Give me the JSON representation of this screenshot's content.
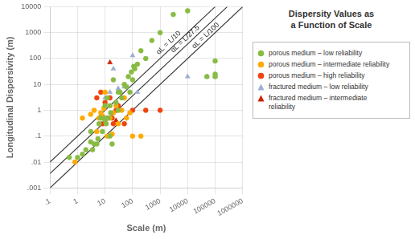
{
  "chart_data": {
    "type": "scatter",
    "title": "Dispersity Values as\na Function of Scale",
    "xlabel": "Scale (m)",
    "ylabel": "Longitudinal Dispersivity (m)",
    "log": true,
    "grid": true,
    "legend": "right",
    "xlim": [
      0.1,
      1000000
    ],
    "ylim": [
      0.001,
      10000
    ],
    "xticks": [
      {
        "value": 0.1,
        "label": ".1"
      },
      1,
      10,
      100,
      1000,
      10000,
      100000,
      1000000
    ],
    "yticks": [
      {
        "value": 0.001,
        "label": ".001"
      },
      {
        "value": 0.01,
        "label": ".01"
      },
      {
        "value": 0.1,
        "label": ".1"
      },
      1,
      10,
      100,
      1000,
      10000
    ],
    "series": [
      {
        "type": "line",
        "color": "#333333",
        "x": [
          0.1,
          100000
        ],
        "values": [
          0.01,
          10000
        ]
      },
      {
        "type": "line",
        "color": "#333333",
        "x": [
          0.1,
          275000
        ],
        "values": [
          0.0036363636363636364,
          10000
        ]
      },
      {
        "type": "line",
        "color": "#333333",
        "x": [
          0.1,
          1000000
        ],
        "values": [
          0.001,
          10000
        ]
      },
      {
        "name": "porous medium – low reliability",
        "type": "scatter",
        "marker": "circle",
        "color": "#88bb44",
        "x": [
          0.5,
          1.0,
          1.5,
          2.0,
          3.0,
          3.0,
          3.5,
          4.0,
          5.0,
          5.5,
          6.0,
          7.0,
          8.0,
          9.0,
          10.0,
          10.0,
          11.0,
          12.0,
          13.0,
          15.0,
          15.0,
          16.0,
          18.0,
          20.0,
          25.0,
          30.0,
          30.0,
          35.0,
          40.0,
          50.0,
          60.0,
          70.0,
          80.0,
          90.0,
          100.0,
          110.0,
          120.0,
          150.0,
          200.0,
          300.0,
          500.0,
          1000.0,
          3000.0,
          10000.0,
          50000.0,
          100000.0,
          100000.0,
          100000.0
        ],
        "values": [
          0.015,
          0.015,
          0.02,
          0.03,
          0.06,
          0.15,
          0.03,
          0.05,
          0.05,
          0.08,
          0.3,
          0.5,
          0.15,
          0.5,
          0.4,
          1.5,
          0.3,
          3.0,
          0.5,
          1.5,
          0.1,
          0.8,
          0.05,
          15.0,
          2.0,
          1.0,
          5.0,
          5.0,
          3.0,
          10.0,
          8.0,
          20.0,
          5.0,
          30.0,
          15.0,
          50.0,
          40.0,
          60.0,
          200.0,
          100.0,
          500.0,
          1000.0,
          5000.0,
          7000.0,
          20.0,
          80.0,
          20.0,
          25.0
        ]
      },
      {
        "name": "porous medium – intermediate reliability",
        "type": "scatter",
        "marker": "circle",
        "color": "#ffaa00",
        "x": [
          0.8,
          1.5,
          3.0,
          4.0,
          5.0,
          6.0,
          7.0,
          8.0,
          9.0,
          10.0,
          12.0,
          15.0,
          18.0,
          20.0,
          25.0,
          30.0,
          40.0,
          50.0,
          60.0,
          80.0,
          100.0,
          200.0
        ],
        "values": [
          0.01,
          0.5,
          0.7,
          1.0,
          0.15,
          0.5,
          0.8,
          0.6,
          1.2,
          5.0,
          0.1,
          0.5,
          0.12,
          0.8,
          1.5,
          0.3,
          1.0,
          3.0,
          0.5,
          0.8,
          0.1,
          0.1
        ]
      },
      {
        "name": "porous medium – high reliability",
        "type": "scatter",
        "marker": "circle",
        "color": "#ee4411",
        "x": [
          5.0,
          7.0,
          8.0,
          10.0,
          12.0,
          15.0,
          18.0,
          20.0,
          25.0,
          30.0,
          50.0,
          100.0,
          300.0,
          1000.0
        ],
        "values": [
          3.0,
          5.0,
          0.3,
          2.0,
          0.5,
          3.0,
          0.5,
          0.3,
          1.0,
          1.5,
          0.3,
          1.0,
          1.0,
          1.0
        ]
      },
      {
        "name": "fractured medium – low reliability",
        "type": "scatter",
        "marker": "triangle",
        "color": "#9bafd0",
        "x": [
          10.0,
          15.0,
          20.0,
          30.0,
          50.0,
          100.0,
          150.0,
          10000.0,
          50000.0,
          100000.0
        ],
        "values": [
          3.0,
          5.0,
          40.0,
          7.0,
          8.0,
          130.0,
          5.0,
          20.0,
          20.0,
          20.0
        ]
      },
      {
        "name": "fractured medium – intermediate\nreliability",
        "type": "scatter",
        "marker": "triangle",
        "color": "#cc2200",
        "x": [
          15.0,
          25.0
        ],
        "values": [
          70.0,
          0.4
        ]
      }
    ],
    "annotations": [
      {
        "text": "αL = L/10",
        "x": 2500,
        "y": 320
      },
      {
        "text": "αL = L/27.5",
        "x": 10000,
        "y": 450
      },
      {
        "text": "αL = L/100",
        "x": 55000,
        "y": 600
      }
    ]
  }
}
